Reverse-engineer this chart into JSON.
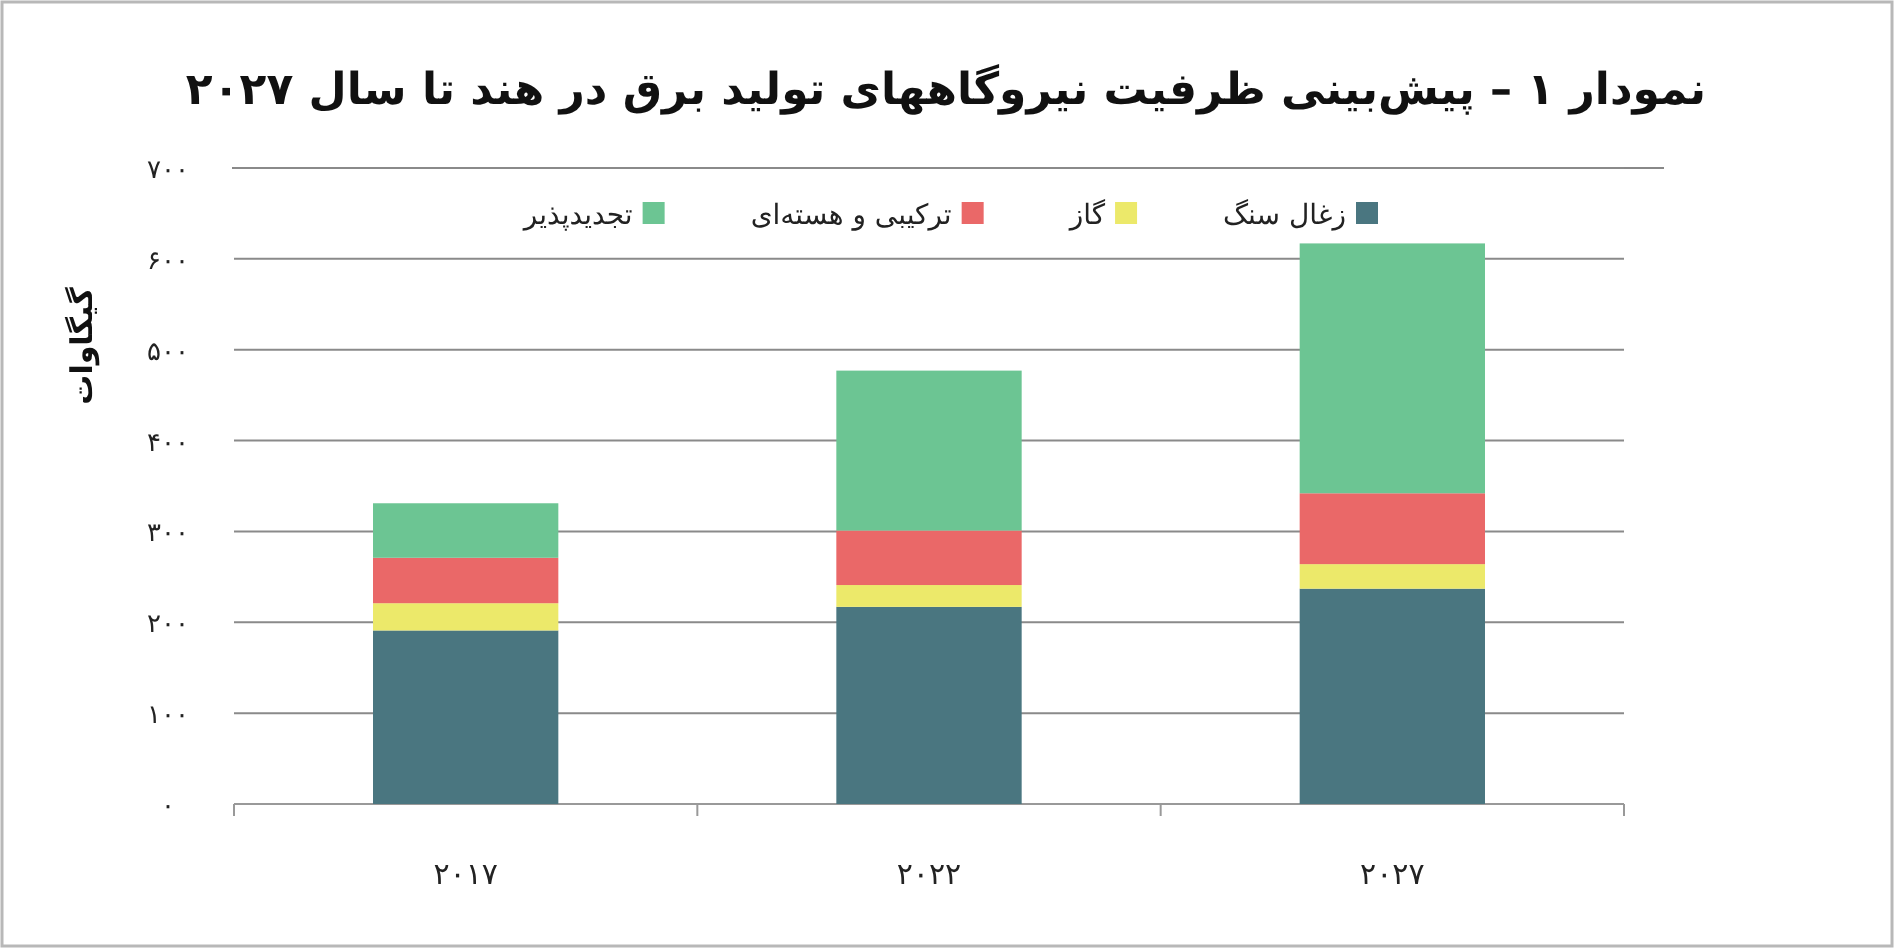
{
  "chart_data": {
    "type": "bar",
    "stacked": true,
    "title": "نمودار ۱ – پیش‌بینی ظرفیت نیروگاههای تولید برق در هند تا سال ۲۰۲۷",
    "ylabel": "گیگاوات",
    "categories": [
      "۲۰۱۷",
      "۲۰۲۲",
      "۲۰۲۷"
    ],
    "series": [
      {
        "name": "زغال سنگ",
        "color": "#4a7680",
        "values": [
          191,
          217,
          237
        ]
      },
      {
        "name": "گاز",
        "color": "#ece96a",
        "values": [
          30,
          24,
          27
        ]
      },
      {
        "name": "ترکیبی و هسته‌ای",
        "color": "#ea6868",
        "values": [
          50,
          60,
          78
        ]
      },
      {
        "name": "تجدیدپذیر",
        "color": "#6cc593",
        "values": [
          60,
          176,
          275
        ]
      }
    ],
    "ylim": [
      0,
      700
    ],
    "yticks": [
      {
        "value": 0,
        "label": "۰"
      },
      {
        "value": 100,
        "label": "۱۰۰"
      },
      {
        "value": 200,
        "label": "۲۰۰"
      },
      {
        "value": 300,
        "label": "۳۰۰"
      },
      {
        "value": 400,
        "label": "۴۰۰"
      },
      {
        "value": 500,
        "label": "۵۰۰"
      },
      {
        "value": 600,
        "label": "۶۰۰"
      },
      {
        "value": 700,
        "label": "۷۰۰"
      }
    ],
    "grid": "y",
    "legend": "top"
  }
}
